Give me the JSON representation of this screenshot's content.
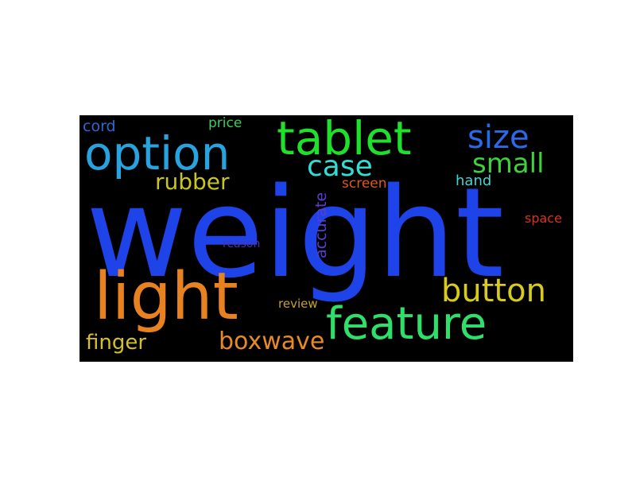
{
  "word_cloud": {
    "background": "#000000",
    "words": {
      "weight": {
        "text": "weight",
        "color": "#1e43e8"
      },
      "option": {
        "text": "option",
        "color": "#27a3e0"
      },
      "tablet": {
        "text": "tablet",
        "color": "#1fe02b"
      },
      "light": {
        "text": "light",
        "color": "#e88220"
      },
      "feature": {
        "text": "feature",
        "color": "#2ee06a"
      },
      "button": {
        "text": "button",
        "color": "#d7cc1a"
      },
      "size": {
        "text": "size",
        "color": "#2a6ae8"
      },
      "case": {
        "text": "case",
        "color": "#2fdfd3"
      },
      "small": {
        "text": "small",
        "color": "#3ed13a"
      },
      "boxwave": {
        "text": "boxwave",
        "color": "#e88a26"
      },
      "rubber": {
        "text": "rubber",
        "color": "#c9c51f"
      },
      "finger": {
        "text": "finger",
        "color": "#d4c02a"
      },
      "cord": {
        "text": "cord",
        "color": "#2f67d6"
      },
      "price": {
        "text": "price",
        "color": "#3bcf55"
      },
      "hand": {
        "text": "hand",
        "color": "#41d6d0"
      },
      "screen": {
        "text": "screen",
        "color": "#e0561f"
      },
      "space": {
        "text": "space",
        "color": "#d8331e"
      },
      "review": {
        "text": "review",
        "color": "#c7a224"
      },
      "reason": {
        "text": "reason",
        "color": "#4b2fb4"
      },
      "accurate": {
        "text": "accurate",
        "color": "#5b3ed0"
      }
    }
  }
}
